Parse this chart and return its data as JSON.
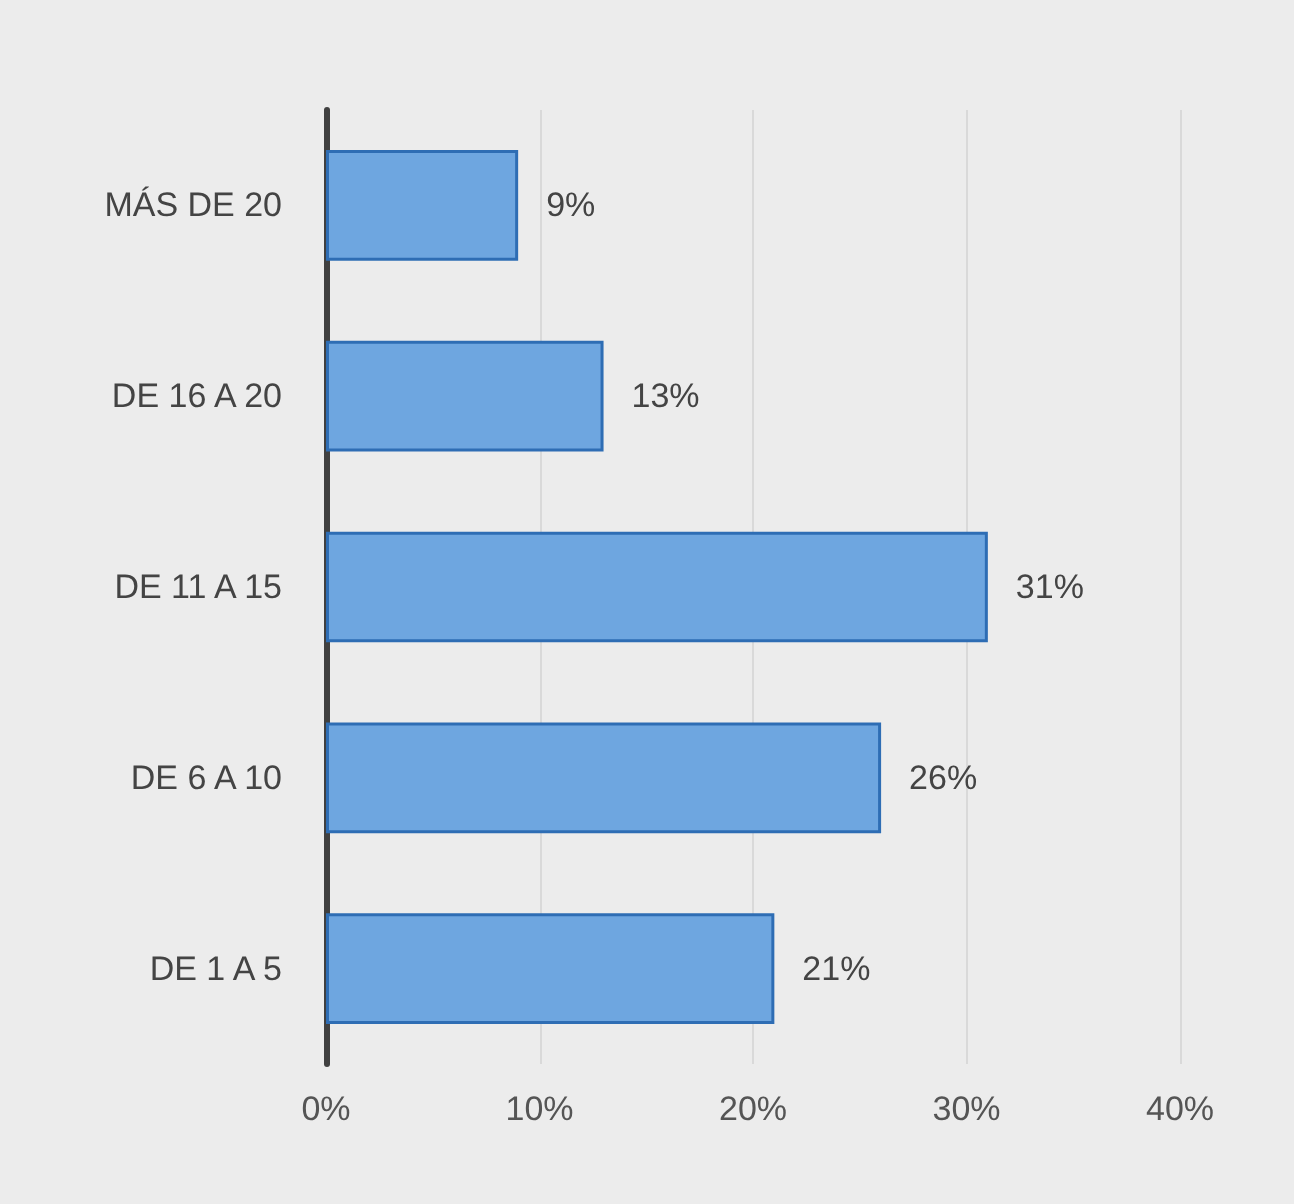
{
  "chart_data": {
    "type": "bar",
    "orientation": "horizontal",
    "categories": [
      "MÁS DE 20",
      "DE 16 A 20",
      "DE 11 A 15",
      "DE 6 A 10",
      "DE 1 A 5"
    ],
    "values": [
      9,
      13,
      31,
      26,
      21
    ],
    "value_labels": [
      "9%",
      "13%",
      "31%",
      "26%",
      "21%"
    ],
    "color": "#6ea6e0",
    "xlim": [
      0,
      40
    ],
    "xticks": [
      {
        "value": 0,
        "label": "0%"
      },
      {
        "value": 10,
        "label": "10%"
      },
      {
        "value": 20,
        "label": "20%"
      },
      {
        "value": 30,
        "label": "30%"
      },
      {
        "value": 40,
        "label": "40%"
      }
    ],
    "grid": "x"
  }
}
